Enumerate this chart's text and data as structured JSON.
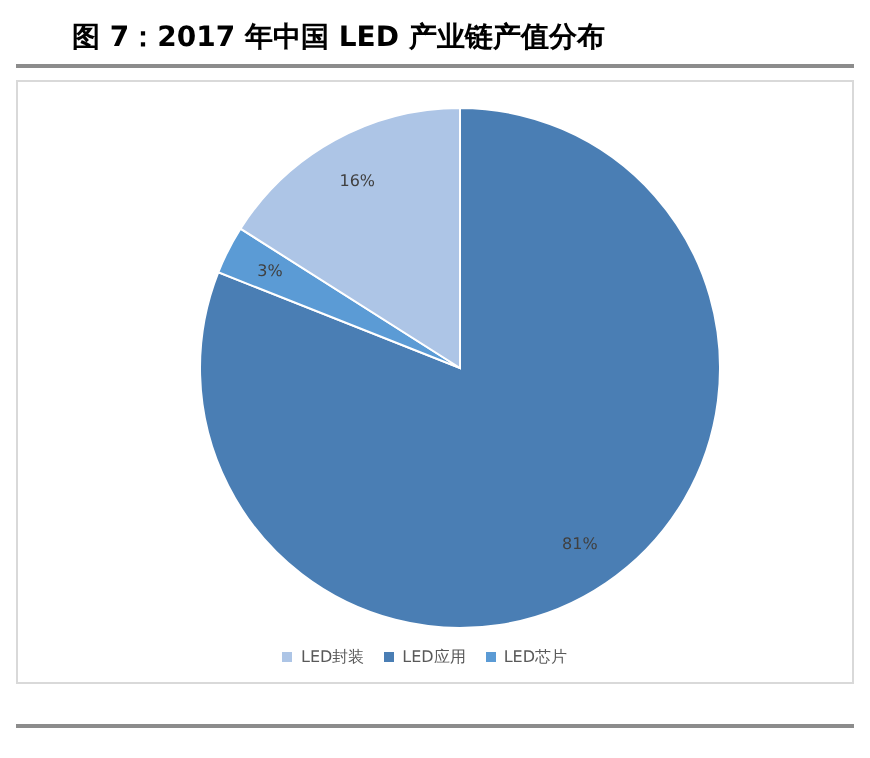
{
  "chart_data": {
    "type": "pie",
    "title": "图 7：2017 年中国 LED 产业链产值分布",
    "categories": [
      "LED应用",
      "LED芯片",
      "LED封装"
    ],
    "values": [
      81,
      3,
      16
    ],
    "colors": [
      "#4a7eb4",
      "#5b9bd5",
      "#adc5e6"
    ],
    "value_labels": [
      "81%",
      "3%",
      "16%"
    ],
    "legend": "bottom"
  }
}
